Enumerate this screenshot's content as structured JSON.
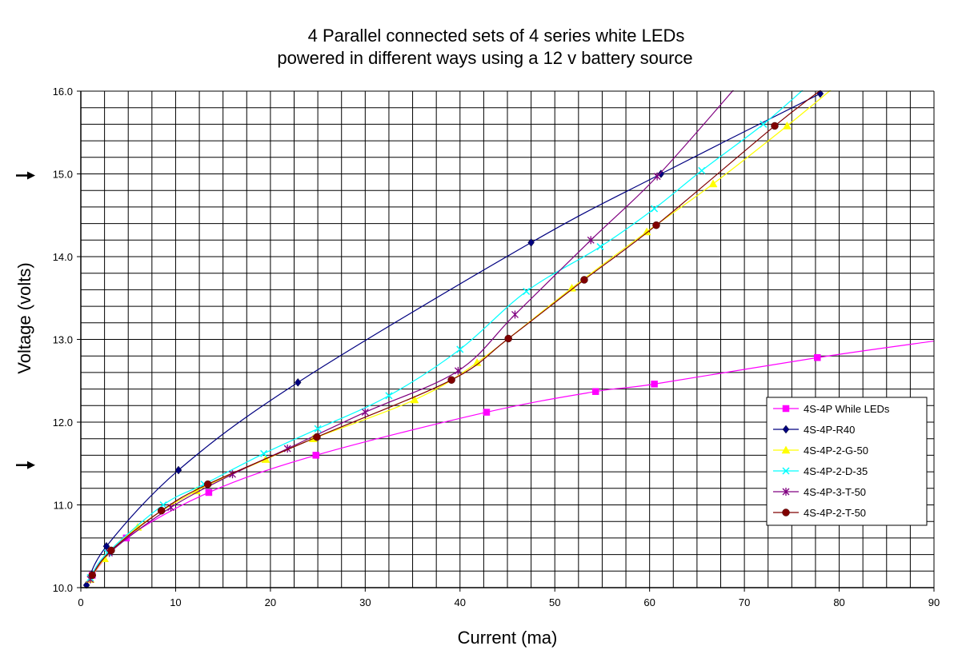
{
  "chart_data": {
    "type": "line",
    "title": "4 Parallel connected sets of 4 series white LEDs",
    "subtitle": "powered in different ways using a 12 v battery source",
    "xlabel": "Current (ma)",
    "ylabel": "Voltage (volts)",
    "xlim": [
      0,
      90
    ],
    "ylim": [
      10.0,
      16.0
    ],
    "x_ticks": [
      0,
      10,
      20,
      30,
      40,
      50,
      60,
      70,
      80,
      90
    ],
    "y_ticks": [
      "10.0",
      "11.0",
      "12.0",
      "13.0",
      "14.0",
      "15.0",
      "16.0"
    ],
    "x_minor_step": 2.5,
    "y_minor_step": 0.2,
    "grid": true,
    "legend_position": "right",
    "arrows_at_y": [
      15.0,
      11.5
    ],
    "series": [
      {
        "name": "4S-4P While LEDs",
        "color": "#ff00ff",
        "marker": "square",
        "points": [
          [
            1.2,
            10.15
          ],
          [
            4.8,
            10.6
          ],
          [
            13.5,
            11.15
          ],
          [
            24.8,
            11.6
          ],
          [
            42.8,
            12.12
          ],
          [
            54.3,
            12.37
          ],
          [
            60.5,
            12.46
          ],
          [
            77.7,
            12.78
          ]
        ],
        "curve_to": [
          90,
          12.98
        ]
      },
      {
        "name": "4S-4P-R40",
        "color": "#000080",
        "marker": "diamond",
        "points": [
          [
            0.6,
            10.03
          ],
          [
            2.7,
            10.5
          ],
          [
            10.3,
            11.42
          ],
          [
            22.9,
            12.48
          ],
          [
            47.5,
            14.17
          ],
          [
            61.2,
            15.0
          ],
          [
            78.0,
            15.97
          ]
        ],
        "curve_to": null
      },
      {
        "name": "4S-4P-2-G-50",
        "color": "#ffff00",
        "marker": "triangle",
        "points": [
          [
            1.0,
            10.1
          ],
          [
            2.5,
            10.35
          ],
          [
            6.0,
            10.73
          ],
          [
            12.2,
            11.17
          ],
          [
            19.5,
            11.55
          ],
          [
            24.5,
            11.8
          ],
          [
            35.2,
            12.27
          ],
          [
            41.8,
            12.72
          ],
          [
            51.8,
            13.62
          ],
          [
            59.7,
            14.3
          ],
          [
            66.7,
            14.88
          ],
          [
            74.5,
            15.58
          ]
        ],
        "curve_to": [
          79.5,
          16.05
        ]
      },
      {
        "name": "4S-4P-2-D-35",
        "color": "#00ffff",
        "marker": "x",
        "points": [
          [
            1.0,
            10.12
          ],
          [
            2.8,
            10.42
          ],
          [
            8.7,
            11.0
          ],
          [
            13.0,
            11.25
          ],
          [
            19.3,
            11.62
          ],
          [
            25.0,
            11.92
          ],
          [
            32.5,
            12.32
          ],
          [
            40.0,
            12.88
          ],
          [
            47.0,
            13.58
          ],
          [
            54.8,
            14.12
          ],
          [
            60.5,
            14.58
          ],
          [
            65.5,
            15.04
          ],
          [
            72.0,
            15.6
          ]
        ],
        "curve_to": [
          77.0,
          16.1
        ]
      },
      {
        "name": "4S-4P-3-T-50",
        "color": "#800080",
        "marker": "star",
        "points": [
          [
            1.0,
            10.1
          ],
          [
            3.0,
            10.42
          ],
          [
            9.5,
            10.97
          ],
          [
            16.0,
            11.37
          ],
          [
            21.8,
            11.68
          ],
          [
            30.0,
            12.12
          ],
          [
            39.8,
            12.62
          ],
          [
            45.8,
            13.3
          ],
          [
            53.8,
            14.2
          ],
          [
            60.8,
            14.97
          ]
        ],
        "curve_to": [
          69.5,
          16.1
        ]
      },
      {
        "name": "4S-4P-2-T-50",
        "color": "#800000",
        "marker": "circle",
        "points": [
          [
            1.2,
            10.15
          ],
          [
            3.2,
            10.45
          ],
          [
            8.5,
            10.93
          ],
          [
            13.4,
            11.25
          ],
          [
            24.9,
            11.82
          ],
          [
            39.1,
            12.51
          ],
          [
            45.1,
            13.01
          ],
          [
            53.1,
            13.72
          ],
          [
            60.7,
            14.38
          ],
          [
            73.2,
            15.58
          ]
        ],
        "curve_to": [
          78.5,
          16.05
        ]
      }
    ]
  }
}
